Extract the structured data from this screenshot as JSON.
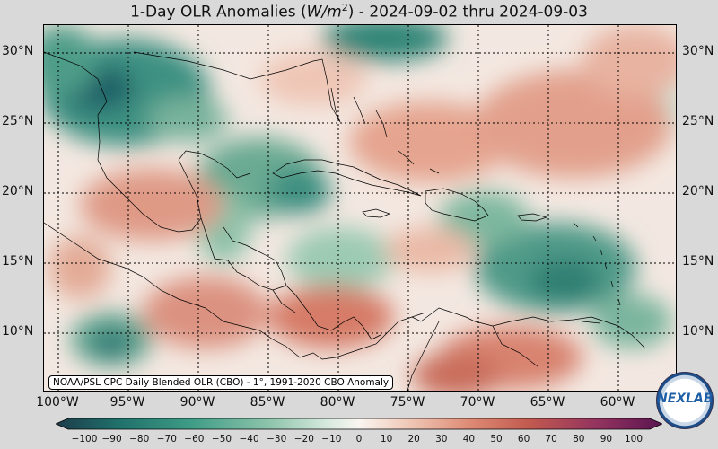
{
  "title": "1-Day OLR Anomalies (W/m²) - 2024-09-02 thru 2024-09-03",
  "title_parts": {
    "before": "1-Day OLR Anomalies (",
    "unit_symbol": "W/m",
    "unit_exponent": "2",
    "after": ") - 2024-09-02 thru 2024-09-03"
  },
  "map": {
    "region_lon": [
      -102,
      -57
    ],
    "region_lat": [
      6,
      32
    ],
    "latitude_labels": [
      "30°N",
      "25°N",
      "20°N",
      "15°N",
      "10°N"
    ],
    "latitudes": [
      30,
      25,
      20,
      15,
      10
    ],
    "longitude_labels": [
      "100°W",
      "95°W",
      "90°W",
      "85°W",
      "80°W",
      "75°W",
      "70°W",
      "65°W",
      "60°W"
    ],
    "longitudes": [
      -100,
      -95,
      -90,
      -85,
      -80,
      -75,
      -70,
      -65,
      -60
    ],
    "gridlines": "dotted"
  },
  "attribution": "NOAA/PSL CPC Daily Blended OLR (CBO) - 1°, 1991-2020 CBO Anomaly",
  "colorbar": {
    "ticks": [
      "−100",
      "−90",
      "−80",
      "−70",
      "−60",
      "−50",
      "−40",
      "−30",
      "−20",
      "−10",
      "0",
      "10",
      "20",
      "30",
      "40",
      "50",
      "60",
      "70",
      "80",
      "90",
      "100"
    ],
    "range": [
      -100,
      100
    ],
    "colors_low_to_high": [
      "#1d3b4a",
      "#1f6f6a",
      "#3d9b85",
      "#8cc3ab",
      "#d8eadf",
      "#faf5f1",
      "#f0c9b8",
      "#de8c76",
      "#c25a4f",
      "#94345f",
      "#5a1450"
    ]
  },
  "logo": {
    "text": "NEXLAB"
  }
}
